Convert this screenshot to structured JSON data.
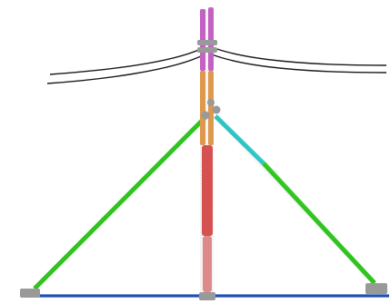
{
  "diagram": {
    "colors": {
      "background": "#ffffff",
      "conductor": "#1a1a1a",
      "pole_top_sleeve": "#cc66cc",
      "pole_mid_sleeve": "#e8a050",
      "pole_lower_sleeve": "#e05555",
      "pole_base_sleeve": "#e89090",
      "left_brace": "#33cc22",
      "right_brace_upper": "#33cccc",
      "right_brace_lower": "#33cc22",
      "ground_bar": "#2255bb",
      "hardware": "#999999"
    }
  }
}
